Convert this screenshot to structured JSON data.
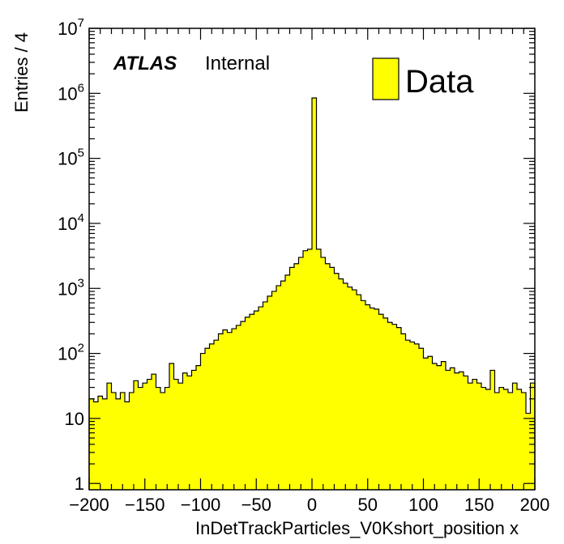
{
  "chart_data": {
    "type": "bar",
    "style": "histogram",
    "xlabel": "InDetTrackParticles_V0Kshort_position x",
    "ylabel": "Entries / 4",
    "xlim": [
      -200,
      200
    ],
    "ylim": [
      0.8,
      10000000
    ],
    "yscale": "log",
    "bin_width": 4,
    "x_ticks": [
      -200,
      -150,
      -100,
      -50,
      0,
      50,
      100,
      150,
      200
    ],
    "y_ticks": [
      1,
      10,
      100,
      1000,
      10000,
      100000,
      1000000,
      10000000
    ],
    "y_tick_labels": [
      "1",
      "10",
      "10^2",
      "10^3",
      "10^4",
      "10^5",
      "10^6",
      "10^7"
    ],
    "atlas_label": "ATLAS",
    "status_label": "Internal",
    "legend_position": "top-right",
    "series": [
      {
        "name": "Data",
        "color": "#ffff00",
        "edge_color": "#000000",
        "bin_lows": [
          -200,
          -196,
          -192,
          -188,
          -184,
          -180,
          -176,
          -172,
          -168,
          -164,
          -160,
          -156,
          -152,
          -148,
          -144,
          -140,
          -136,
          -132,
          -128,
          -124,
          -120,
          -116,
          -112,
          -108,
          -104,
          -100,
          -96,
          -92,
          -88,
          -84,
          -80,
          -76,
          -72,
          -68,
          -64,
          -60,
          -56,
          -52,
          -48,
          -44,
          -40,
          -36,
          -32,
          -28,
          -24,
          -20,
          -16,
          -12,
          -8,
          -4,
          0,
          4,
          8,
          12,
          16,
          20,
          24,
          28,
          32,
          36,
          40,
          44,
          48,
          52,
          56,
          60,
          64,
          68,
          72,
          76,
          80,
          84,
          88,
          92,
          96,
          100,
          104,
          108,
          112,
          116,
          120,
          124,
          128,
          132,
          136,
          140,
          144,
          148,
          152,
          156,
          160,
          164,
          168,
          172,
          176,
          180,
          184,
          188,
          192,
          196
        ],
        "values": [
          20,
          18,
          22,
          20,
          35,
          25,
          20,
          25,
          18,
          25,
          38,
          30,
          35,
          40,
          48,
          30,
          25,
          30,
          70,
          40,
          35,
          50,
          45,
          55,
          65,
          100,
          120,
          140,
          160,
          200,
          230,
          210,
          240,
          270,
          310,
          360,
          400,
          450,
          520,
          620,
          760,
          900,
          1100,
          1300,
          1600,
          2100,
          2400,
          3000,
          3800,
          4000,
          850000,
          4000,
          3000,
          2400,
          2100,
          1700,
          1400,
          1200,
          1050,
          950,
          800,
          650,
          560,
          500,
          480,
          400,
          350,
          300,
          280,
          250,
          200,
          160,
          150,
          140,
          120,
          85,
          90,
          70,
          65,
          75,
          55,
          60,
          50,
          52,
          45,
          35,
          40,
          35,
          30,
          28,
          55,
          25,
          30,
          28,
          25,
          35,
          28,
          25,
          12,
          35
        ]
      }
    ]
  }
}
